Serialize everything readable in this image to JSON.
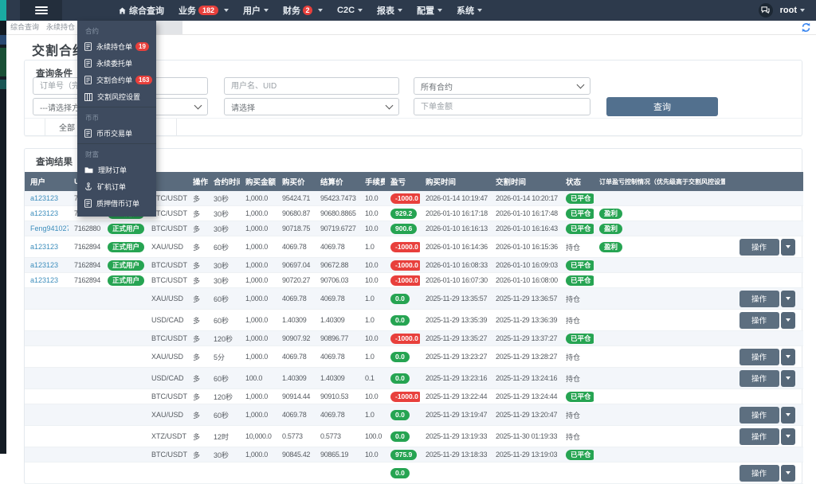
{
  "navbar": {
    "items": [
      {
        "label": "综合查询",
        "icon": "home",
        "badge": "",
        "caret": false
      },
      {
        "label": "业务",
        "badge": "182",
        "caret": true,
        "open": true
      },
      {
        "label": "用户",
        "badge": "",
        "caret": true
      },
      {
        "label": "财务",
        "badge": "2",
        "caret": true
      },
      {
        "label": "C2C",
        "badge": "",
        "caret": true
      },
      {
        "label": "报表",
        "badge": "",
        "caret": true
      },
      {
        "label": "配置",
        "badge": "",
        "caret": true
      },
      {
        "label": "系统",
        "badge": "",
        "caret": true
      }
    ],
    "user": "root"
  },
  "menu": {
    "sections": [
      {
        "title": "合约",
        "items": [
          {
            "label": "永续持仓单",
            "badge": "19",
            "icon": "document"
          },
          {
            "label": "永续委托单",
            "badge": "",
            "icon": "document"
          },
          {
            "label": "交割合约单",
            "badge": "163",
            "icon": "document"
          },
          {
            "label": "交割风控设置",
            "badge": "",
            "icon": "table"
          }
        ]
      },
      {
        "title": "币币",
        "items": [
          {
            "label": "币币交易单",
            "badge": "",
            "icon": "document"
          }
        ]
      },
      {
        "title": "财富",
        "items": [
          {
            "label": "理财订单",
            "badge": "",
            "icon": "folder"
          },
          {
            "label": "矿机订单",
            "badge": "",
            "icon": "anchor"
          },
          {
            "label": "质押借币订单",
            "badge": "",
            "icon": "document"
          }
        ]
      }
    ]
  },
  "tabs": {
    "items": [
      "综合查询",
      "永续持仓"
    ]
  },
  "page": {
    "title": "交割合约单"
  },
  "filter": {
    "section_title": "查询条件",
    "order_no_placeholder": "订单号（完整）",
    "user_placeholder": "用户名、UID",
    "contract_select": "所有合约",
    "direction_select": "---请选择方向---",
    "status_select": "请选择",
    "amount_placeholder": "下单金额",
    "search_button": "查询",
    "quick_tabs": [
      "全部",
      "",
      ""
    ]
  },
  "results": {
    "section_title": "查询结果",
    "columns": [
      "用户",
      "UID",
      "",
      "",
      "操作",
      "合约时间",
      "购买金额",
      "购买价",
      "结算价",
      "手续费",
      "盈亏",
      "购买时间",
      "交割时间",
      "状态",
      "订单盈亏控制情况（优先级高于交割风控设置）",
      ""
    ],
    "status_closed": "已平仓",
    "status_holding": "持仓",
    "action_button": "操作",
    "rows": [
      {
        "user": "a123123",
        "uid": "7162894",
        "utype": "正式用户",
        "pair": "BTC/USDT",
        "dir": "多",
        "period": "30秒",
        "amount": "1,000.0",
        "buy_price": "95424.71",
        "settle_price": "95423.7473",
        "fee": "10.0",
        "pnl": "-1000.0",
        "pnl_type": "red",
        "buy_time": "2026-01-14 10:19:47",
        "settle_time": "2026-01-14 10:20:17",
        "status": "closed",
        "control": "",
        "action": false
      },
      {
        "user": "a123123",
        "uid": "7162894",
        "utype": "正式用户",
        "pair": "BTC/USDT",
        "dir": "多",
        "period": "30秒",
        "amount": "1,000.0",
        "buy_price": "90680.87",
        "settle_price": "90680.8865",
        "fee": "10.0",
        "pnl": "929.2",
        "pnl_type": "green",
        "buy_time": "2026-01-10 16:17:18",
        "settle_time": "2026-01-10 16:17:48",
        "status": "closed",
        "control": "盈利",
        "action": false
      },
      {
        "user": "Feng941027",
        "uid": "7162880",
        "utype": "正式用户",
        "pair": "BTC/USDT",
        "dir": "多",
        "period": "30秒",
        "amount": "1,000.0",
        "buy_price": "90718.75",
        "settle_price": "90719.6727",
        "fee": "10.0",
        "pnl": "900.6",
        "pnl_type": "green",
        "buy_time": "2026-01-10 16:16:13",
        "settle_time": "2026-01-10 16:16:43",
        "status": "closed",
        "control": "盈利",
        "action": false
      },
      {
        "user": "a123123",
        "uid": "7162894",
        "utype": "正式用户",
        "pair": "XAU/USD",
        "dir": "多",
        "period": "60秒",
        "amount": "1,000.0",
        "buy_price": "4069.78",
        "settle_price": "4069.78",
        "fee": "1.0",
        "pnl": "-1000.0",
        "pnl_type": "red",
        "buy_time": "2026-01-10 16:14:36",
        "settle_time": "2026-01-10 16:15:36",
        "status": "holding",
        "control": "盈利",
        "action": true
      },
      {
        "user": "a123123",
        "uid": "7162894",
        "utype": "正式用户",
        "pair": "BTC/USDT",
        "dir": "多",
        "period": "30秒",
        "amount": "1,000.0",
        "buy_price": "90697.04",
        "settle_price": "90672.88",
        "fee": "10.0",
        "pnl": "-1000.0",
        "pnl_type": "red",
        "buy_time": "2026-01-10 16:08:33",
        "settle_time": "2026-01-10 16:09:03",
        "status": "closed",
        "control": "",
        "action": false
      },
      {
        "user": "a123123",
        "uid": "7162894",
        "utype": "正式用户",
        "pair": "BTC/USDT",
        "dir": "多",
        "period": "30秒",
        "amount": "1,000.0",
        "buy_price": "90720.27",
        "settle_price": "90706.03",
        "fee": "10.0",
        "pnl": "-1000.0",
        "pnl_type": "red",
        "buy_time": "2026-01-10 16:07:30",
        "settle_time": "2026-01-10 16:08:00",
        "status": "closed",
        "control": "",
        "action": false
      },
      {
        "user": "",
        "uid": "",
        "utype": "",
        "pair": "XAU/USD",
        "dir": "多",
        "period": "60秒",
        "amount": "1,000.0",
        "buy_price": "4069.78",
        "settle_price": "4069.78",
        "fee": "1.0",
        "pnl": "0.0",
        "pnl_type": "green",
        "buy_time": "2025-11-29 13:35:57",
        "settle_time": "2025-11-29 13:36:57",
        "status": "holding",
        "control": "",
        "action": true
      },
      {
        "user": "",
        "uid": "",
        "utype": "",
        "pair": "USD/CAD",
        "dir": "多",
        "period": "60秒",
        "amount": "1,000.0",
        "buy_price": "1.40309",
        "settle_price": "1.40309",
        "fee": "1.0",
        "pnl": "0.0",
        "pnl_type": "green",
        "buy_time": "2025-11-29 13:35:39",
        "settle_time": "2025-11-29 13:36:39",
        "status": "holding",
        "control": "",
        "action": true
      },
      {
        "user": "",
        "uid": "",
        "utype": "",
        "pair": "BTC/USDT",
        "dir": "多",
        "period": "120秒",
        "amount": "1,000.0",
        "buy_price": "90907.92",
        "settle_price": "90896.77",
        "fee": "10.0",
        "pnl": "-1000.0",
        "pnl_type": "red",
        "buy_time": "2025-11-29 13:35:27",
        "settle_time": "2025-11-29 13:37:27",
        "status": "closed",
        "control": "",
        "action": false
      },
      {
        "user": "",
        "uid": "",
        "utype": "",
        "pair": "XAU/USD",
        "dir": "多",
        "period": "5分",
        "amount": "1,000.0",
        "buy_price": "4069.78",
        "settle_price": "4069.78",
        "fee": "1.0",
        "pnl": "0.0",
        "pnl_type": "green",
        "buy_time": "2025-11-29 13:23:27",
        "settle_time": "2025-11-29 13:28:27",
        "status": "holding",
        "control": "",
        "action": true
      },
      {
        "user": "",
        "uid": "",
        "utype": "",
        "pair": "USD/CAD",
        "dir": "多",
        "period": "60秒",
        "amount": "100.0",
        "buy_price": "1.40309",
        "settle_price": "1.40309",
        "fee": "0.1",
        "pnl": "0.0",
        "pnl_type": "green",
        "buy_time": "2025-11-29 13:23:16",
        "settle_time": "2025-11-29 13:24:16",
        "status": "holding",
        "control": "",
        "action": true
      },
      {
        "user": "",
        "uid": "",
        "utype": "",
        "pair": "BTC/USDT",
        "dir": "多",
        "period": "120秒",
        "amount": "1,000.0",
        "buy_price": "90914.44",
        "settle_price": "90910.53",
        "fee": "10.0",
        "pnl": "-1000.0",
        "pnl_type": "red",
        "buy_time": "2025-11-29 13:22:44",
        "settle_time": "2025-11-29 13:24:44",
        "status": "closed",
        "control": "",
        "action": false
      },
      {
        "user": "",
        "uid": "",
        "utype": "",
        "pair": "XAU/USD",
        "dir": "多",
        "period": "60秒",
        "amount": "1,000.0",
        "buy_price": "4069.78",
        "settle_price": "4069.78",
        "fee": "1.0",
        "pnl": "0.0",
        "pnl_type": "green",
        "buy_time": "2025-11-29 13:19:47",
        "settle_time": "2025-11-29 13:20:47",
        "status": "holding",
        "control": "",
        "action": true
      },
      {
        "user": "",
        "uid": "",
        "utype": "",
        "pair": "XTZ/USDT",
        "dir": "多",
        "period": "12时",
        "amount": "10,000.0",
        "buy_price": "0.5773",
        "settle_price": "0.5773",
        "fee": "100.0",
        "pnl": "0.0",
        "pnl_type": "green",
        "buy_time": "2025-11-29 13:19:33",
        "settle_time": "2025-11-30 01:19:33",
        "status": "holding",
        "control": "",
        "action": true
      },
      {
        "user": "",
        "uid": "",
        "utype": "",
        "pair": "BTC/USDT",
        "dir": "多",
        "period": "30秒",
        "amount": "1,000.0",
        "buy_price": "90845.42",
        "settle_price": "90865.19",
        "fee": "10.0",
        "pnl": "975.9",
        "pnl_type": "green",
        "buy_time": "2025-11-29 13:18:33",
        "settle_time": "2025-11-29 13:19:03",
        "status": "closed",
        "control": "",
        "action": false
      },
      {
        "user": "",
        "uid": "",
        "utype": "",
        "pair": "",
        "dir": "",
        "period": "",
        "amount": "",
        "buy_price": "",
        "settle_price": "",
        "fee": "",
        "pnl": "0.0",
        "pnl_type": "green",
        "buy_time": "",
        "settle_time": "",
        "status": "holding",
        "control": "",
        "action": true
      }
    ]
  },
  "colors": {
    "navbar_bg": "#2d3a4c",
    "dropdown_bg": "#3e4b5f",
    "table_header_bg": "#5a6b7d",
    "green": "#26a452",
    "red": "#e8403c",
    "link_blue": "#3c8dbc",
    "button_blue": "#52708e",
    "refresh_blue": "#3b87f0",
    "teal": "#1aaaa2"
  }
}
